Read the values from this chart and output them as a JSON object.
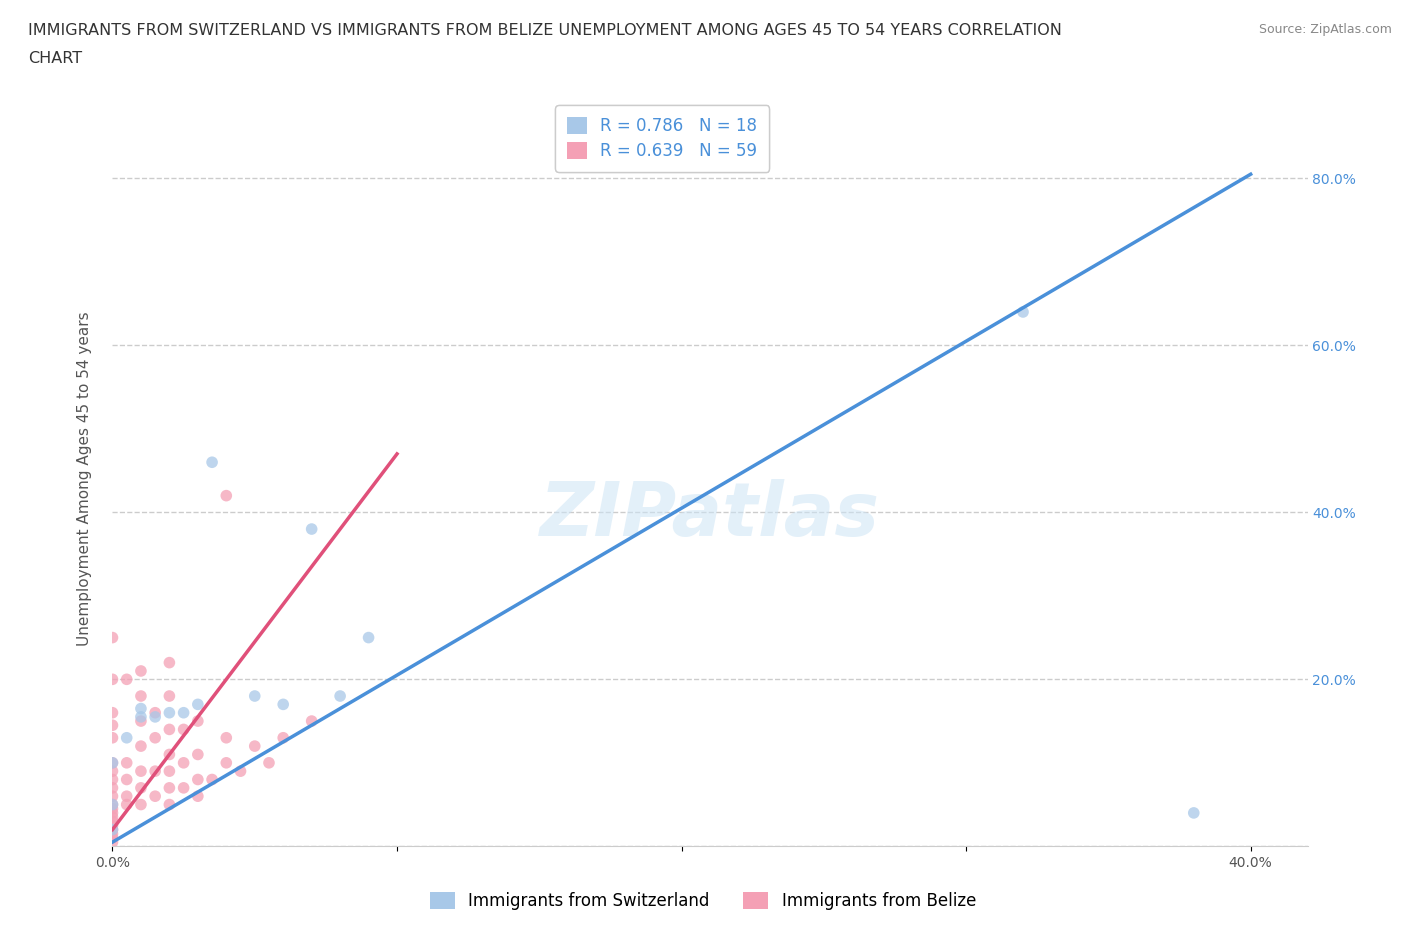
{
  "title_line1": "IMMIGRANTS FROM SWITZERLAND VS IMMIGRANTS FROM BELIZE UNEMPLOYMENT AMONG AGES 45 TO 54 YEARS CORRELATION",
  "title_line2": "CHART",
  "source": "Source: ZipAtlas.com",
  "ylabel": "Unemployment Among Ages 45 to 54 years",
  "xlim": [
    0.0,
    0.42
  ],
  "ylim": [
    0.0,
    0.88
  ],
  "xticks": [
    0.0,
    0.1,
    0.2,
    0.3,
    0.4
  ],
  "xticklabels": [
    "0.0%",
    "",
    "",
    "",
    "40.0%"
  ],
  "yticks": [
    0.0,
    0.2,
    0.4,
    0.6,
    0.8
  ],
  "yticklabels_right": [
    "",
    "20.0%",
    "40.0%",
    "60.0%",
    "80.0%"
  ],
  "watermark": "ZIPatlas",
  "switzerland_color": "#a8c8e8",
  "belize_color": "#f4a0b5",
  "switzerland_line_color": "#4a90d9",
  "belize_line_color": "#e0507a",
  "r_switzerland": 0.786,
  "n_switzerland": 18,
  "r_belize": 0.639,
  "n_belize": 59,
  "legend_label_switzerland": "Immigrants from Switzerland",
  "legend_label_belize": "Immigrants from Belize",
  "sw_x": [
    0.0,
    0.0,
    0.0,
    0.005,
    0.01,
    0.01,
    0.015,
    0.02,
    0.025,
    0.03,
    0.035,
    0.05,
    0.06,
    0.07,
    0.08,
    0.09,
    0.32,
    0.38
  ],
  "sw_y": [
    0.02,
    0.05,
    0.1,
    0.13,
    0.155,
    0.165,
    0.155,
    0.16,
    0.16,
    0.17,
    0.46,
    0.18,
    0.17,
    0.38,
    0.18,
    0.25,
    0.64,
    0.04
  ],
  "bz_x": [
    0.0,
    0.0,
    0.0,
    0.0,
    0.0,
    0.0,
    0.0,
    0.0,
    0.0,
    0.0,
    0.0,
    0.0,
    0.0,
    0.0,
    0.0,
    0.0,
    0.0,
    0.0,
    0.0,
    0.0,
    0.005,
    0.005,
    0.005,
    0.005,
    0.005,
    0.01,
    0.01,
    0.01,
    0.01,
    0.01,
    0.01,
    0.01,
    0.015,
    0.015,
    0.015,
    0.015,
    0.02,
    0.02,
    0.02,
    0.02,
    0.02,
    0.02,
    0.02,
    0.025,
    0.025,
    0.025,
    0.03,
    0.03,
    0.03,
    0.03,
    0.035,
    0.04,
    0.04,
    0.04,
    0.045,
    0.05,
    0.055,
    0.06,
    0.07
  ],
  "bz_y": [
    0.005,
    0.01,
    0.015,
    0.02,
    0.025,
    0.03,
    0.035,
    0.04,
    0.045,
    0.05,
    0.06,
    0.07,
    0.08,
    0.09,
    0.1,
    0.13,
    0.145,
    0.16,
    0.2,
    0.25,
    0.05,
    0.06,
    0.08,
    0.1,
    0.2,
    0.05,
    0.07,
    0.09,
    0.12,
    0.15,
    0.18,
    0.21,
    0.06,
    0.09,
    0.13,
    0.16,
    0.05,
    0.07,
    0.09,
    0.11,
    0.14,
    0.18,
    0.22,
    0.07,
    0.1,
    0.14,
    0.06,
    0.08,
    0.11,
    0.15,
    0.08,
    0.1,
    0.13,
    0.42,
    0.09,
    0.12,
    0.1,
    0.13,
    0.15
  ],
  "grid_color": "#cccccc",
  "bg_color": "#ffffff",
  "title_fontsize": 11.5,
  "axis_label_fontsize": 11,
  "tick_fontsize": 10,
  "legend_fontsize": 12,
  "scatter_size": 70,
  "scatter_alpha": 0.75,
  "line_width": 2.5
}
